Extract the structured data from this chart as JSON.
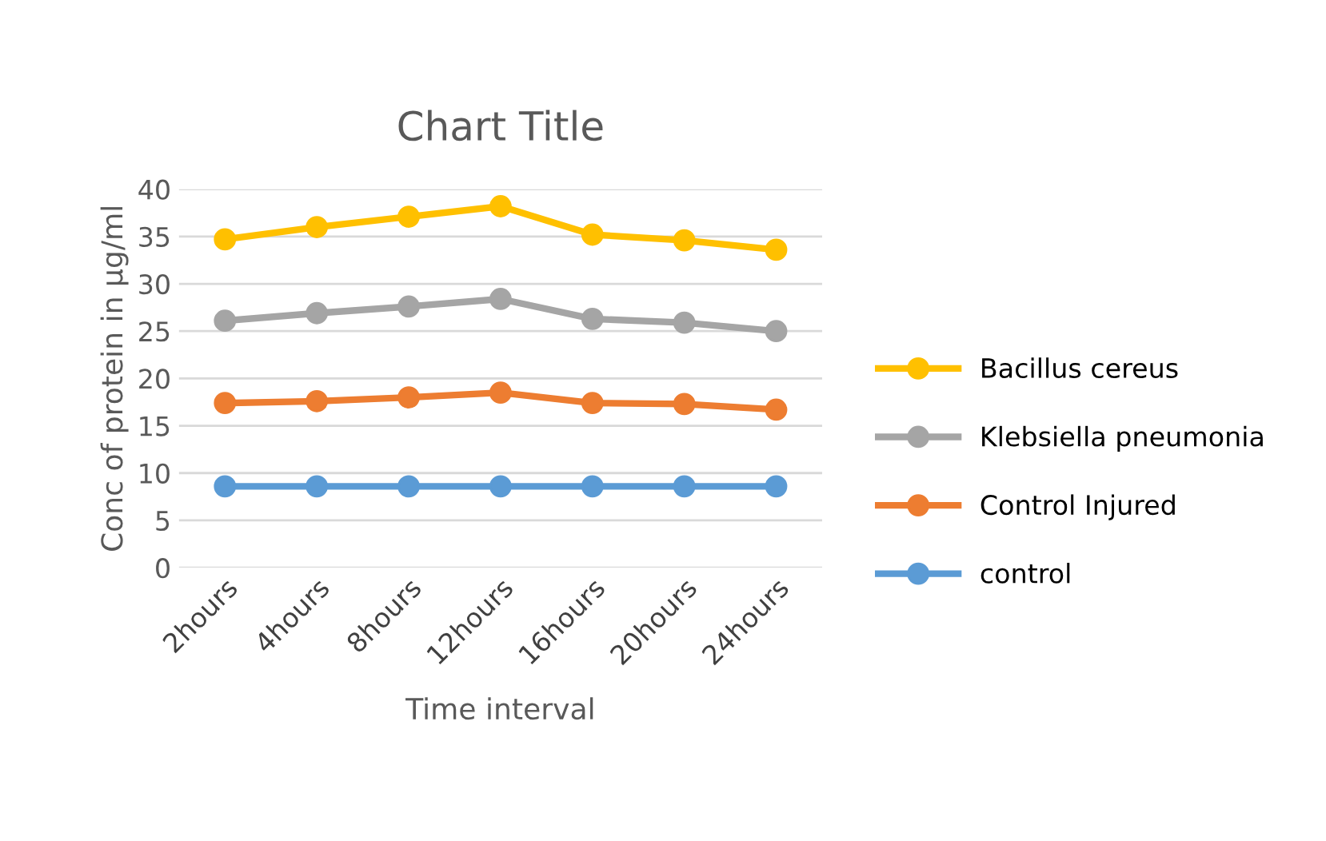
{
  "chart_data": {
    "type": "line",
    "title": "Chart Title",
    "xlabel": "Time interval",
    "ylabel": "Conc of protein in µg/ml",
    "categories": [
      "2hours",
      "4hours",
      "8hours",
      "12hours",
      "16hours",
      "20hours",
      "24hours"
    ],
    "series": [
      {
        "name": "Bacillus cereus",
        "color": "#ffc000",
        "values": [
          34.7,
          36.0,
          37.1,
          38.2,
          35.2,
          34.6,
          33.6
        ]
      },
      {
        "name": "Klebsiella pneumonia",
        "color": "#a5a5a5",
        "values": [
          26.1,
          26.9,
          27.6,
          28.4,
          26.3,
          25.9,
          25.0
        ]
      },
      {
        "name": "Control Injured",
        "color": "#ed7d31",
        "values": [
          17.4,
          17.6,
          18.0,
          18.5,
          17.4,
          17.3,
          16.7
        ]
      },
      {
        "name": "control",
        "color": "#5b9bd5",
        "values": [
          8.6,
          8.6,
          8.6,
          8.6,
          8.6,
          8.6,
          8.6
        ]
      }
    ],
    "ylim": [
      0,
      40
    ],
    "yticks": [
      0,
      5,
      10,
      15,
      20,
      25,
      30,
      35,
      40
    ],
    "grid": "y",
    "legend": "right",
    "marker": "circle"
  }
}
